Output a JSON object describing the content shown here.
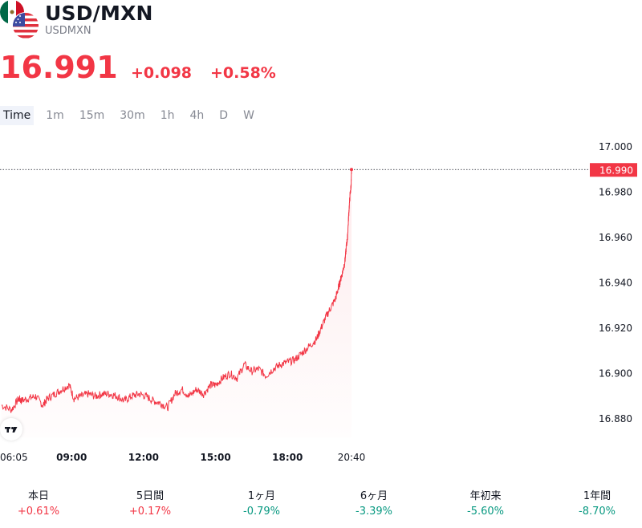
{
  "header": {
    "title": "USD/MXN",
    "subtitle": "USDMXN",
    "price": "16.991",
    "change": "+0.098",
    "change_pct": "+0.58%"
  },
  "intervals": [
    "Time",
    "1m",
    "15m",
    "30m",
    "1h",
    "4h",
    "D",
    "W"
  ],
  "active_interval": "Time",
  "colors": {
    "down": "#f23645",
    "up": "#089981",
    "text": "#131722",
    "muted": "#868993"
  },
  "icons": {
    "base_flag": "us-flag-icon",
    "quote_flag": "mexico-flag-icon",
    "logo": "tradingview-logo-icon"
  },
  "chart_data": {
    "type": "line",
    "x_tick_labels": [
      "06:05",
      "09:00",
      "12:00",
      "15:00",
      "18:00",
      "20:40"
    ],
    "x_tick_hours": [
      6.083,
      9,
      12,
      15,
      18,
      20.667
    ],
    "xlim": [
      6.083,
      20.667
    ],
    "ylim": [
      16.874,
      17.006
    ],
    "y_ticks": [
      17.0,
      16.98,
      16.96,
      16.94,
      16.92,
      16.9,
      16.88
    ],
    "y_tick_labels": [
      "17.000",
      "16.980",
      "16.960",
      "16.940",
      "16.920",
      "16.900",
      "16.880"
    ],
    "last_value_label": "16.990",
    "last_value": 16.99,
    "grid": false,
    "series": [
      {
        "x": [
          6.08,
          6.5,
          6.8,
          6.9,
          7.2,
          7.5,
          7.8,
          8.0,
          8.3,
          8.6,
          8.9,
          9.1,
          9.4,
          9.7,
          10.0,
          10.3,
          10.6,
          10.9,
          11.2,
          11.5,
          11.8,
          12.1,
          12.4,
          12.7,
          13.0,
          13.3,
          13.6,
          13.9,
          14.2,
          14.5,
          14.8,
          15.0,
          15.3,
          15.6,
          15.9,
          16.2,
          16.5,
          16.8,
          17.1,
          17.4,
          17.7,
          18.0,
          18.3,
          18.6,
          18.9,
          19.2,
          19.4,
          19.6,
          19.8,
          20.0,
          20.1,
          20.2,
          20.3,
          20.4,
          20.45,
          20.5,
          20.55,
          20.6,
          20.65,
          20.67
        ],
        "y": [
          16.886,
          16.884,
          16.889,
          16.888,
          16.889,
          16.89,
          16.886,
          16.889,
          16.891,
          16.893,
          16.895,
          16.889,
          16.89,
          16.891,
          16.89,
          16.891,
          16.891,
          16.89,
          16.888,
          16.89,
          16.891,
          16.89,
          16.888,
          16.887,
          16.885,
          16.891,
          16.893,
          16.89,
          16.893,
          16.891,
          16.895,
          16.895,
          16.898,
          16.9,
          16.898,
          16.904,
          16.901,
          16.902,
          16.899,
          16.902,
          16.904,
          16.905,
          16.906,
          16.909,
          16.912,
          16.915,
          16.92,
          16.925,
          16.929,
          16.933,
          16.937,
          16.941,
          16.945,
          16.95,
          16.956,
          16.96,
          16.97,
          16.978,
          16.983,
          16.99
        ]
      }
    ]
  },
  "performance": [
    {
      "label": "本日",
      "value": "+0.61%",
      "dir": "pos"
    },
    {
      "label": "5日間",
      "value": "+0.17%",
      "dir": "pos"
    },
    {
      "label": "1ヶ月",
      "value": "-0.79%",
      "dir": "neg"
    },
    {
      "label": "6ヶ月",
      "value": "-3.39%",
      "dir": "neg"
    },
    {
      "label": "年初来",
      "value": "-5.60%",
      "dir": "neg"
    },
    {
      "label": "1年間",
      "value": "-8.70%",
      "dir": "neg"
    }
  ]
}
